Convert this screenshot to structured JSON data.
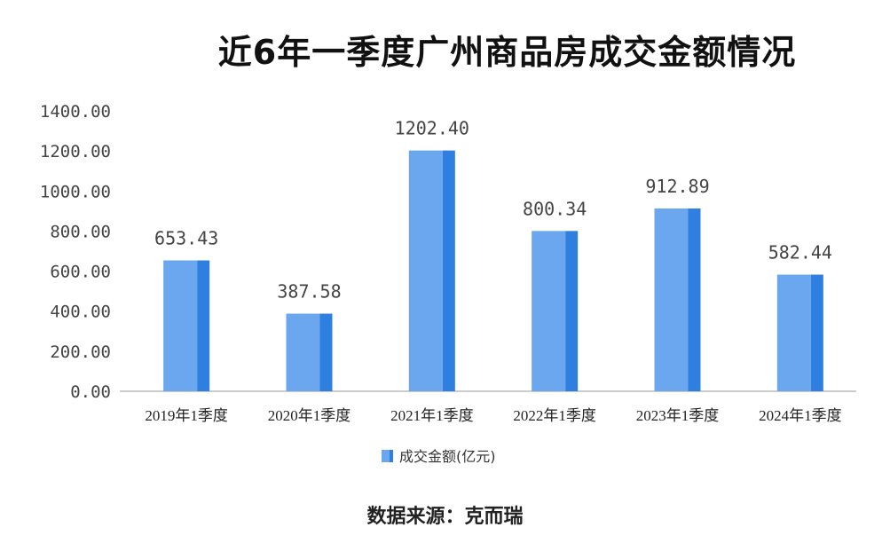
{
  "title": "近6年一季度广州商品房成交金额情况",
  "source": "数据来源：克而瑞",
  "colors": {
    "bar_main": "#6aa7ee",
    "bar_side": "#2e7fe0",
    "axis_text": "#444444",
    "baseline": "#bbbbbb"
  },
  "chart_data": {
    "type": "bar",
    "categories": [
      "2019年1季度",
      "2020年1季度",
      "2021年1季度",
      "2022年1季度",
      "2023年1季度",
      "2024年1季度"
    ],
    "series": [
      {
        "name": "成交金额(亿元)",
        "values": [
          653.43,
          387.58,
          1202.4,
          800.34,
          912.89,
          582.44
        ]
      }
    ],
    "value_labels": [
      "653.43",
      "387.58",
      "1202.40",
      "800.34",
      "912.89",
      "582.44"
    ],
    "ylim": [
      0,
      1400
    ],
    "yticks": [
      "0.00",
      "200.00",
      "400.00",
      "600.00",
      "800.00",
      "1000.00",
      "1200.00",
      "1400.00"
    ],
    "legend_position": "bottom-center",
    "grid": false
  }
}
